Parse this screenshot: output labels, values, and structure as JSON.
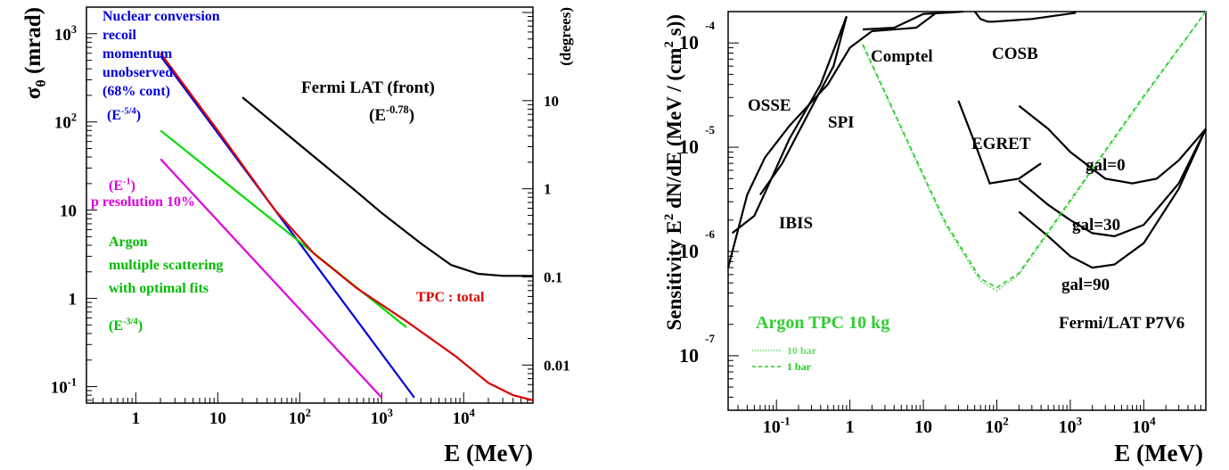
{
  "chart_data": [
    {
      "type": "line",
      "xlabel": "E (MeV)",
      "ylabel": "σθ (mrad)",
      "y2label": "(degrees)",
      "xscale": "log",
      "yscale": "log",
      "xlim": [
        0.25,
        70000
      ],
      "ylim": [
        0.065,
        2000
      ],
      "y2lim": [
        0.0037,
        115
      ],
      "grid": false,
      "xticks": [
        {
          "v": 1,
          "m": "1",
          "e": ""
        },
        {
          "v": 10,
          "m": "10",
          "e": ""
        },
        {
          "v": 100,
          "m": "10",
          "e": "2"
        },
        {
          "v": 1000,
          "m": "10",
          "e": "3"
        },
        {
          "v": 10000,
          "m": "10",
          "e": "4"
        }
      ],
      "yticks": [
        {
          "v": 0.1,
          "m": "10",
          "e": "-1"
        },
        {
          "v": 1,
          "m": "1",
          "e": ""
        },
        {
          "v": 10,
          "m": "10",
          "e": ""
        },
        {
          "v": 100,
          "m": "10",
          "e": "2"
        },
        {
          "v": 1000,
          "m": "10",
          "e": "3"
        }
      ],
      "y2ticks": [
        {
          "v": 0.01,
          "t": "0.01"
        },
        {
          "v": 0.1,
          "t": "0.1"
        },
        {
          "v": 1,
          "t": "1"
        },
        {
          "v": 10,
          "t": "10"
        }
      ],
      "series": [
        {
          "color": "#0000dd",
          "x": [
            2,
            2500
          ],
          "y": [
            560,
            0.075
          ]
        },
        {
          "color": "#dd00dd",
          "x": [
            2,
            1000
          ],
          "y": [
            38,
            0.075
          ]
        },
        {
          "color": "#00dd00",
          "x": [
            2,
            2000
          ],
          "y": [
            80,
            0.47
          ]
        },
        {
          "color": "#000000",
          "x": [
            20,
            100,
            500,
            1000,
            3000,
            7000,
            15000,
            30000,
            70000
          ],
          "y": [
            190,
            55,
            16,
            9.3,
            4.2,
            2.4,
            1.9,
            1.8,
            1.8
          ]
        },
        {
          "color": "#dd0000",
          "x": [
            2,
            10,
            50,
            150,
            500,
            2000,
            8000,
            20000,
            40000,
            70000
          ],
          "y": [
            600,
            80,
            10,
            3.2,
            1.3,
            0.55,
            0.22,
            0.11,
            0.08,
            0.07
          ]
        }
      ],
      "annotations": [
        {
          "lines": [
            "Nuclear conversion",
            "recoil",
            "momentum",
            "unobserved",
            "(68% cont)"
          ],
          "color": "#0000dd"
        },
        {
          "m": "(E",
          "e": "-5/4",
          "s": ")",
          "color": "#0000dd"
        },
        {
          "m": "Fermi LAT (front)",
          "e": "",
          "s": "",
          "color": "#000000"
        },
        {
          "m": "(E",
          "e": "-0.78",
          "s": ")",
          "color": "#000000"
        },
        {
          "m": "(E",
          "e": "-1",
          "s": ")",
          "color": "#dd00dd"
        },
        {
          "lines": [
            "p resolution 10%"
          ],
          "color": "#dd00dd"
        },
        {
          "lines": [
            "Argon",
            "multiple scattering",
            "with optimal fits"
          ],
          "color": "#00bb00"
        },
        {
          "m": "(E",
          "e": "-3/4",
          "s": ")",
          "color": "#00bb00"
        },
        {
          "lines": [
            "TPC : total"
          ],
          "color": "#dd0000"
        }
      ]
    },
    {
      "type": "line",
      "xlabel": "E (MeV)",
      "ylabel": "Sensitivity  E² dN/dE (MeV / (cm² s))",
      "xscale": "log",
      "yscale": "log",
      "xlim": [
        0.022,
        70000
      ],
      "ylim": [
        3e-08,
        0.0002
      ],
      "grid": false,
      "xticks": [
        {
          "v": 0.1,
          "m": "10",
          "e": "-1"
        },
        {
          "v": 1,
          "m": "1",
          "e": ""
        },
        {
          "v": 10,
          "m": "10",
          "e": ""
        },
        {
          "v": 100,
          "m": "10",
          "e": "2"
        },
        {
          "v": 1000,
          "m": "10",
          "e": "3"
        },
        {
          "v": 10000,
          "m": "10",
          "e": "4"
        }
      ],
      "yticks": [
        {
          "v": 0.0001,
          "m": "10",
          "e": "-4"
        },
        {
          "v": 1e-05,
          "m": "10",
          "e": "-5"
        },
        {
          "v": 1e-06,
          "m": "10",
          "e": "-6"
        },
        {
          "v": 1e-07,
          "m": "10",
          "e": "-7"
        }
      ],
      "series": [
        {
          "name": "OSSE",
          "color": "#000000",
          "x": [
            0.06,
            0.12,
            0.3,
            0.6,
            0.9
          ],
          "y": [
            3.5e-06,
            7e-06,
            2.4e-05,
            6e-05,
            0.00018
          ]
        },
        {
          "name": "IBIS",
          "color": "#000000",
          "x": [
            0.025,
            0.05,
            0.08,
            0.15,
            0.4,
            0.9
          ],
          "y": [
            1.5e-06,
            2.2e-06,
            4.5e-06,
            1.2e-05,
            4e-05,
            0.00018
          ]
        },
        {
          "name": "SPI",
          "color": "#000000",
          "x": [
            0.022,
            0.04,
            0.07,
            0.15,
            0.5,
            1,
            2,
            8,
            15
          ],
          "y": [
            7e-07,
            3.5e-06,
            8e-06,
            1.6e-05,
            4e-05,
            9e-05,
            0.00013,
            0.00014,
            0.000195
          ]
        },
        {
          "name": "Comptel",
          "color": "#000000",
          "x": [
            1.5,
            4,
            10,
            20,
            35
          ],
          "y": [
            0.000135,
            0.00014,
            0.00019,
            0.000195,
            0.0002
          ]
        },
        {
          "name": "COSB",
          "color": "#000000",
          "x": [
            50,
            60,
            75,
            90,
            300,
            1200
          ],
          "y": [
            0.0002,
            0.00017,
            0.00016,
            0.00016,
            0.00017,
            0.000195
          ]
        },
        {
          "name": "EGRET",
          "color": "#000000",
          "x": [
            30,
            50,
            80,
            200,
            400
          ],
          "y": [
            2.8e-05,
            1.1e-05,
            4.5e-06,
            5e-06,
            7e-06
          ]
        },
        {
          "name": "gal=0",
          "color": "#000000",
          "x": [
            200,
            500,
            1000,
            3000,
            7000,
            15000,
            30000,
            70000
          ],
          "y": [
            2.5e-05,
            1.5e-05,
            9e-06,
            5e-06,
            4.5e-06,
            5e-06,
            7.5e-06,
            1.5e-05
          ]
        },
        {
          "name": "gal=30",
          "color": "#000000",
          "x": [
            200,
            500,
            1000,
            2000,
            4000,
            10000,
            30000,
            70000
          ],
          "y": [
            4.8e-06,
            2.8e-06,
            2e-06,
            1.5e-06,
            1.4e-06,
            1.8e-06,
            4.5e-06,
            1.5e-05
          ]
        },
        {
          "name": "gal=90",
          "color": "#000000",
          "x": [
            200,
            500,
            1000,
            2000,
            4000,
            10000,
            30000,
            70000
          ],
          "y": [
            2.4e-06,
            1.4e-06,
            9e-07,
            7e-07,
            7.5e-07,
            1.2e-06,
            4e-06,
            1.5e-05
          ]
        },
        {
          "name": "10 bar",
          "color": "#66dd66",
          "dash": "2 2",
          "x": [
            1.5,
            5,
            20,
            60,
            100,
            200,
            1000,
            10000,
            70000
          ],
          "y": [
            9.5e-05,
            1.5e-05,
            1.8e-06,
            5.2e-07,
            4.2e-07,
            6e-07,
            3e-06,
            3e-05,
            0.0002
          ]
        },
        {
          "name": "1 bar",
          "color": "#22cc22",
          "dash": "5 4",
          "x": [
            1.5,
            5,
            20,
            60,
            100,
            200,
            1000,
            10000,
            70000
          ],
          "y": [
            9.7e-05,
            1.55e-05,
            1.9e-06,
            5.5e-07,
            4.5e-07,
            6.2e-07,
            3.1e-06,
            3.1e-05,
            0.0002
          ]
        }
      ],
      "labels": [
        {
          "t": "Comptel"
        },
        {
          "t": "COSB"
        },
        {
          "t": "OSSE"
        },
        {
          "t": "SPI"
        },
        {
          "t": "EGRET"
        },
        {
          "t": "IBIS"
        },
        {
          "t": "gal=0"
        },
        {
          "t": "gal=30"
        },
        {
          "t": "gal=90"
        },
        {
          "t": "Fermi/LAT P7V6"
        }
      ],
      "argon_label": "Argon TPC 10 kg",
      "legend": [
        {
          "label": "10 bar",
          "color": "#66dd66",
          "dash": "1.5 1.5"
        },
        {
          "label": "1 bar",
          "color": "#22cc22",
          "dash": "4 3"
        }
      ]
    }
  ]
}
